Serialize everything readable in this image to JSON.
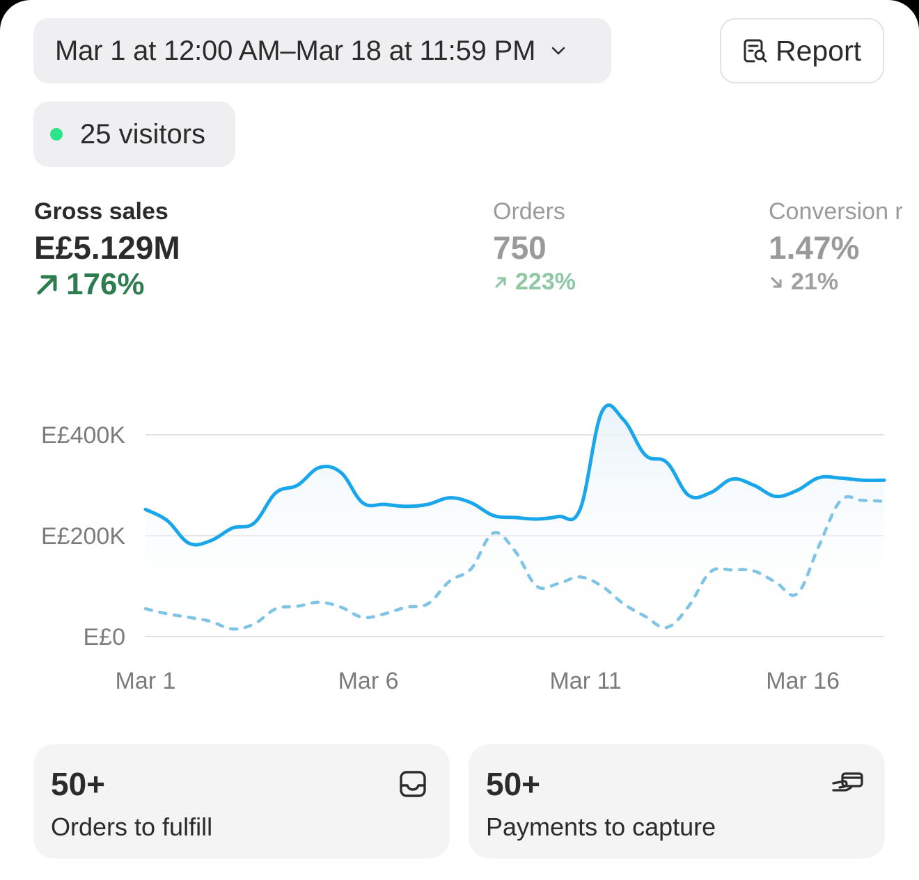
{
  "date_range": {
    "label": "Mar 1 at 12:00 AM–Mar 18 at 11:59 PM",
    "chevron_icon": "chevron-down-icon"
  },
  "report_button": {
    "label": "Report",
    "icon": "report-search-icon"
  },
  "live_visitors": {
    "label": "25 visitors",
    "dot_color": "#2ee387"
  },
  "metrics": [
    {
      "label": "Gross sales",
      "value": "E£5.129M",
      "change": "176%",
      "direction": "up",
      "color": "#2e7d4f"
    },
    {
      "label": "Orders",
      "value": "750",
      "change": "223%",
      "direction": "up",
      "color": "#8fc7a5"
    },
    {
      "label": "Conversion r",
      "value": "1.47%",
      "change": "21%",
      "direction": "down",
      "color": "#a0a0a0"
    }
  ],
  "chart_data": {
    "type": "line",
    "ylabel": "",
    "xlabel": "",
    "ylim": [
      0,
      400000
    ],
    "y_ticks": [
      "E£0",
      "E£200K",
      "E£400K"
    ],
    "y_tick_values": [
      0,
      200000,
      400000
    ],
    "x_ticks": [
      "Mar 1",
      "Mar 6",
      "Mar 11",
      "Mar 16"
    ],
    "x_tick_values": [
      1,
      6,
      11,
      16
    ],
    "x": [
      1,
      1.5,
      2,
      2.5,
      3,
      3.5,
      4,
      4.5,
      5,
      5.5,
      6,
      6.5,
      7,
      7.5,
      8,
      8.5,
      9,
      9.5,
      10,
      10.5,
      11,
      11.5,
      12,
      12.5,
      13,
      13.5,
      14,
      14.5,
      15,
      15.5,
      16,
      16.5,
      17,
      17.5,
      18
    ],
    "series": [
      {
        "style": "solid",
        "color": "#1aa6ea",
        "values": [
          252000,
          230000,
          185000,
          190000,
          215000,
          225000,
          285000,
          300000,
          335000,
          325000,
          265000,
          262000,
          258000,
          262000,
          275000,
          265000,
          240000,
          236000,
          233000,
          238000,
          252000,
          445000,
          430000,
          360000,
          345000,
          280000,
          285000,
          312000,
          300000,
          278000,
          290000,
          315000,
          314000,
          310000,
          310000
        ]
      },
      {
        "style": "dashed",
        "color": "#7fc4e4",
        "values": [
          55000,
          45000,
          38000,
          30000,
          15000,
          25000,
          55000,
          60000,
          68000,
          58000,
          38000,
          45000,
          58000,
          65000,
          110000,
          135000,
          205000,
          170000,
          100000,
          105000,
          118000,
          100000,
          65000,
          40000,
          18000,
          60000,
          128000,
          132000,
          130000,
          108000,
          85000,
          180000,
          270000,
          270000,
          268000
        ]
      }
    ]
  },
  "cards": [
    {
      "count": "50+",
      "label": "Orders to fulfill",
      "icon": "inbox-icon"
    },
    {
      "count": "50+",
      "label": "Payments to capture",
      "icon": "card-payment-icon"
    }
  ]
}
